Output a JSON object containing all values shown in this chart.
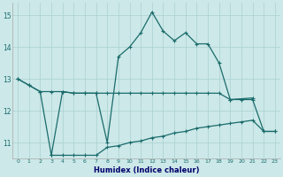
{
  "xlabel": "Humidex (Indice chaleur)",
  "series": {
    "s1_x": [
      0,
      1,
      2,
      3,
      4,
      5,
      6,
      7,
      8,
      9,
      10,
      11,
      12,
      13,
      14,
      15,
      16,
      17,
      18,
      19,
      21
    ],
    "s1_y": [
      13.0,
      12.8,
      12.6,
      10.6,
      12.6,
      12.55,
      12.55,
      12.55,
      11.0,
      13.7,
      14.0,
      14.45,
      15.1,
      14.5,
      14.2,
      14.45,
      14.1,
      14.1,
      13.5,
      12.35,
      12.4
    ],
    "s2_x": [
      0,
      1,
      2,
      3,
      4,
      5,
      6,
      7,
      8,
      9,
      10,
      11,
      12,
      13,
      14,
      15,
      16,
      17,
      18,
      19,
      20,
      21,
      22,
      23
    ],
    "s2_y": [
      13.0,
      12.8,
      12.6,
      12.6,
      12.6,
      12.55,
      12.55,
      12.55,
      12.55,
      12.55,
      12.55,
      12.55,
      12.55,
      12.55,
      12.55,
      12.55,
      12.55,
      12.55,
      12.55,
      12.35,
      12.35,
      12.35,
      11.35,
      11.35
    ],
    "s3_x": [
      3,
      4,
      5,
      6,
      7,
      8,
      9,
      10,
      11,
      12,
      13,
      14,
      15,
      16,
      17,
      18,
      19,
      20,
      21,
      22,
      23
    ],
    "s3_y": [
      10.6,
      10.6,
      10.6,
      10.6,
      10.6,
      10.85,
      10.9,
      11.0,
      11.05,
      11.15,
      11.2,
      11.3,
      11.35,
      11.45,
      11.5,
      11.55,
      11.6,
      11.65,
      11.7,
      11.35,
      11.35
    ]
  },
  "color": "#1a6b6b",
  "bg_color": "#cce8e8",
  "grid_color": "#aad0d0",
  "ylim": [
    10.5,
    15.4
  ],
  "xlim": [
    -0.5,
    23.5
  ],
  "yticks": [
    11,
    12,
    13,
    14,
    15
  ],
  "xticks": [
    0,
    1,
    2,
    3,
    4,
    5,
    6,
    7,
    8,
    9,
    10,
    11,
    12,
    13,
    14,
    15,
    16,
    17,
    18,
    19,
    20,
    21,
    22,
    23
  ],
  "xlabel_color": "#00006b",
  "tick_color": "#1a6b6b"
}
